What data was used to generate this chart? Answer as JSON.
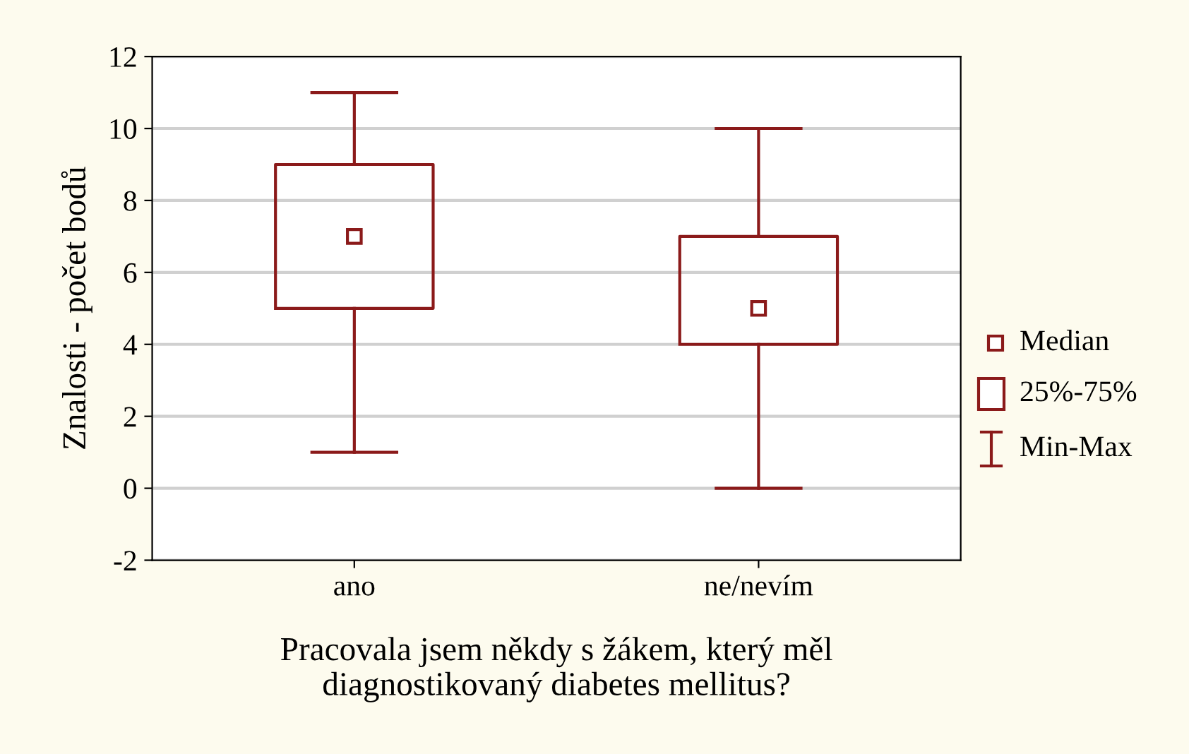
{
  "chart_data": {
    "type": "box",
    "categories": [
      "ano",
      "ne/nevím"
    ],
    "boxes": [
      {
        "low": 1,
        "q1": 5,
        "median": 7,
        "q3": 9,
        "high": 11
      },
      {
        "low": 0,
        "q1": 4,
        "median": 5,
        "q3": 7,
        "high": 10
      }
    ],
    "color": "#8b1a1a",
    "xlabel": "Pracovala jsem někdy s žákem, který měl\ndiagnostikovaný diabetes mellitus?",
    "ylabel": "Znalosti - počet bodů",
    "ylim": [
      -2,
      12
    ],
    "yticks": [
      -2,
      0,
      2,
      4,
      6,
      8,
      10,
      12
    ],
    "grid": "y",
    "marker": "square",
    "annotations": [
      "Median",
      "25%-75%",
      "Min-Max"
    ]
  }
}
